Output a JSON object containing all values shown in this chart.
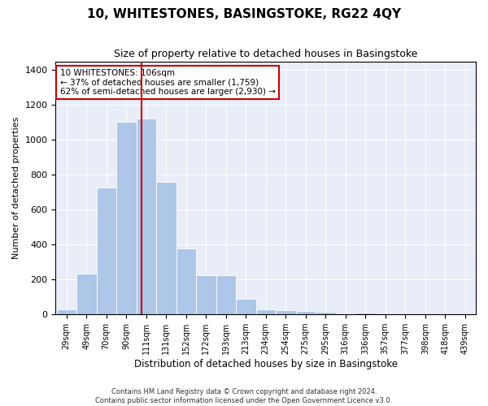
{
  "title": "10, WHITESTONES, BASINGSTOKE, RG22 4QY",
  "subtitle": "Size of property relative to detached houses in Basingstoke",
  "xlabel": "Distribution of detached houses by size in Basingstoke",
  "ylabel": "Number of detached properties",
  "bar_labels": [
    "29sqm",
    "49sqm",
    "70sqm",
    "90sqm",
    "111sqm",
    "131sqm",
    "152sqm",
    "172sqm",
    "193sqm",
    "213sqm",
    "234sqm",
    "254sqm",
    "275sqm",
    "295sqm",
    "316sqm",
    "336sqm",
    "357sqm",
    "377sqm",
    "398sqm",
    "418sqm",
    "439sqm"
  ],
  "bar_values": [
    30,
    235,
    725,
    1105,
    1120,
    760,
    380,
    225,
    225,
    90,
    30,
    25,
    20,
    15,
    0,
    10,
    0,
    0,
    0,
    0,
    0
  ],
  "bar_color": "#aec6e8",
  "vline_x": 106,
  "vline_color": "#cc0000",
  "ylim": [
    0,
    1450
  ],
  "yticks": [
    0,
    200,
    400,
    600,
    800,
    1000,
    1200,
    1400
  ],
  "annotation_text": "10 WHITESTONES: 106sqm\n← 37% of detached houses are smaller (1,759)\n62% of semi-detached houses are larger (2,930) →",
  "annotation_box_edgecolor": "#cc0000",
  "footer_line1": "Contains HM Land Registry data © Crown copyright and database right 2024.",
  "footer_line2": "Contains public sector information licensed under the Open Government Licence v3.0.",
  "bin_edges": [
    19,
    39,
    60,
    80,
    101,
    121,
    142,
    162,
    183,
    203,
    224,
    244,
    265,
    285,
    306,
    326,
    347,
    367,
    388,
    408,
    429,
    449
  ],
  "property_sqm": 106,
  "bg_color": "#e8edf8"
}
